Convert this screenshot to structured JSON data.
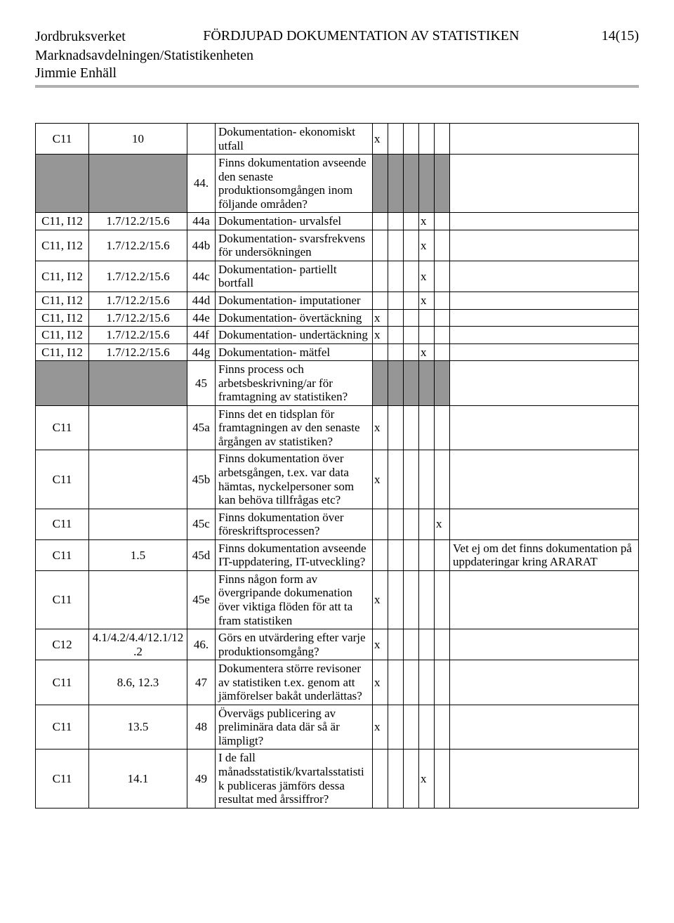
{
  "header": {
    "org": "Jordbruksverket",
    "title": "FÖRDJUPAD DOKUMENTATION AV STATISTIKEN",
    "page": "14(15)",
    "dept": "Marknadsavdelningen/Statistikenheten",
    "author": "Jimmie Enhäll"
  },
  "colors": {
    "shaded": "#969696",
    "divider": "#b0b0b0",
    "text": "#000000",
    "border": "#000000",
    "bg": "#ffffff"
  },
  "rows": [
    {
      "c1": "C11",
      "c2": "10",
      "c3": "",
      "c4": "Dokumentation- ekonomiskt utfall",
      "marks": [
        "x",
        "",
        "",
        "",
        ""
      ],
      "c10": ""
    },
    {
      "c1": "",
      "c2": "",
      "c3": "44.",
      "c4": "Finns dokumentation avseende den senaste produktionsomgången inom följande områden?",
      "marks": [
        "",
        "",
        "",
        "",
        ""
      ],
      "c10": "",
      "shade": [
        true,
        true,
        false,
        false,
        true,
        true,
        true,
        true,
        true,
        false
      ]
    },
    {
      "c1": "C11, I12",
      "c2": "1.7/12.2/15.6",
      "c3": "44a",
      "c4": "Dokumentation- urvalsfel",
      "marks": [
        "",
        "",
        "",
        "x",
        ""
      ],
      "c10": ""
    },
    {
      "c1": "C11, I12",
      "c2": "1.7/12.2/15.6",
      "c3": "44b",
      "c4": "Dokumentation- svarsfrekvens för undersökningen",
      "marks": [
        "",
        "",
        "",
        "x",
        ""
      ],
      "c10": ""
    },
    {
      "c1": "C11, I12",
      "c2": "1.7/12.2/15.6",
      "c3": "44c",
      "c4": "Dokumentation- partiellt bortfall",
      "marks": [
        "",
        "",
        "",
        "x",
        ""
      ],
      "c10": ""
    },
    {
      "c1": "C11, I12",
      "c2": "1.7/12.2/15.6",
      "c3": "44d",
      "c4": "Dokumentation-  imputationer",
      "marks": [
        "",
        "",
        "",
        "x",
        ""
      ],
      "c10": ""
    },
    {
      "c1": "C11, I12",
      "c2": "1.7/12.2/15.6",
      "c3": "44e",
      "c4": "Dokumentation- övertäckning",
      "marks": [
        "x",
        "",
        "",
        "",
        ""
      ],
      "c10": ""
    },
    {
      "c1": "C11, I12",
      "c2": "1.7/12.2/15.6",
      "c3": "44f",
      "c4": "Dokumentation- undertäckning",
      "marks": [
        "x",
        "",
        "",
        "",
        ""
      ],
      "c10": ""
    },
    {
      "c1": "C11, I12",
      "c2": "1.7/12.2/15.6",
      "c3": "44g",
      "c4": "Dokumentation- mätfel",
      "marks": [
        "",
        "",
        "",
        "x",
        ""
      ],
      "c10": ""
    },
    {
      "c1": "",
      "c2": "",
      "c3": "45",
      "c4": "Finns process och arbetsbeskrivning/ar för framtagning av statistiken?",
      "marks": [
        "",
        "",
        "",
        "",
        ""
      ],
      "c10": "",
      "shade": [
        true,
        true,
        false,
        false,
        true,
        true,
        true,
        true,
        true,
        false
      ]
    },
    {
      "c1": "C11",
      "c2": "",
      "c3": "45a",
      "c4": "Finns det en tidsplan för framtagningen av den senaste årgången av statistiken?",
      "marks": [
        "x",
        "",
        "",
        "",
        ""
      ],
      "c10": ""
    },
    {
      "c1": "C11",
      "c2": "",
      "c3": "45b",
      "c4": "Finns dokumentation över arbetsgången, t.ex. var data hämtas, nyckelpersoner som kan behöva tillfrågas etc?",
      "marks": [
        "x",
        "",
        "",
        "",
        ""
      ],
      "c10": ""
    },
    {
      "c1": "C11",
      "c2": "",
      "c3": "45c",
      "c4": "Finns dokumentation över föreskriftsprocessen?",
      "marks": [
        "",
        "",
        "",
        "",
        "x"
      ],
      "c10": ""
    },
    {
      "c1": "C11",
      "c2": "1.5",
      "c3": "45d",
      "c4": "Finns dokumentation avseende IT-uppdatering, IT-utveckling?",
      "marks": [
        "",
        "",
        "",
        "",
        ""
      ],
      "c10": "Vet ej om det finns dokumentation på uppdateringar kring ARARAT"
    },
    {
      "c1": "C11",
      "c2": "",
      "c3": "45e",
      "c4": "Finns någon form av övergripande dokumenation över viktiga flöden för att ta fram statistiken",
      "marks": [
        "x",
        "",
        "",
        "",
        ""
      ],
      "c10": ""
    },
    {
      "c1": "C12",
      "c2": "4.1/4.2/4.4/12.1/12.2",
      "c3": "46.",
      "c4": "Görs en utvärdering efter varje produktionsomgång?",
      "marks": [
        "x",
        "",
        "",
        "",
        ""
      ],
      "c10": ""
    },
    {
      "c1": "C11",
      "c2": "8.6, 12.3",
      "c3": "47",
      "c4": "Dokumentera större revisoner av statistiken t.ex. genom att jämförelser bakåt underlättas?",
      "marks": [
        "x",
        "",
        "",
        "",
        ""
      ],
      "c10": ""
    },
    {
      "c1": "C11",
      "c2": "13.5",
      "c3": "48",
      "c4": "Övervägs publicering av preliminära data där så är lämpligt?",
      "marks": [
        "x",
        "",
        "",
        "",
        ""
      ],
      "c10": ""
    },
    {
      "c1": "C11",
      "c2": "14.1",
      "c3": "49",
      "c4": "I de fall månadsstatistik/kvartalsstatistik publiceras jämförs dessa resultat med årssiffror?",
      "marks": [
        "",
        "",
        "",
        "x",
        ""
      ],
      "c10": ""
    }
  ]
}
